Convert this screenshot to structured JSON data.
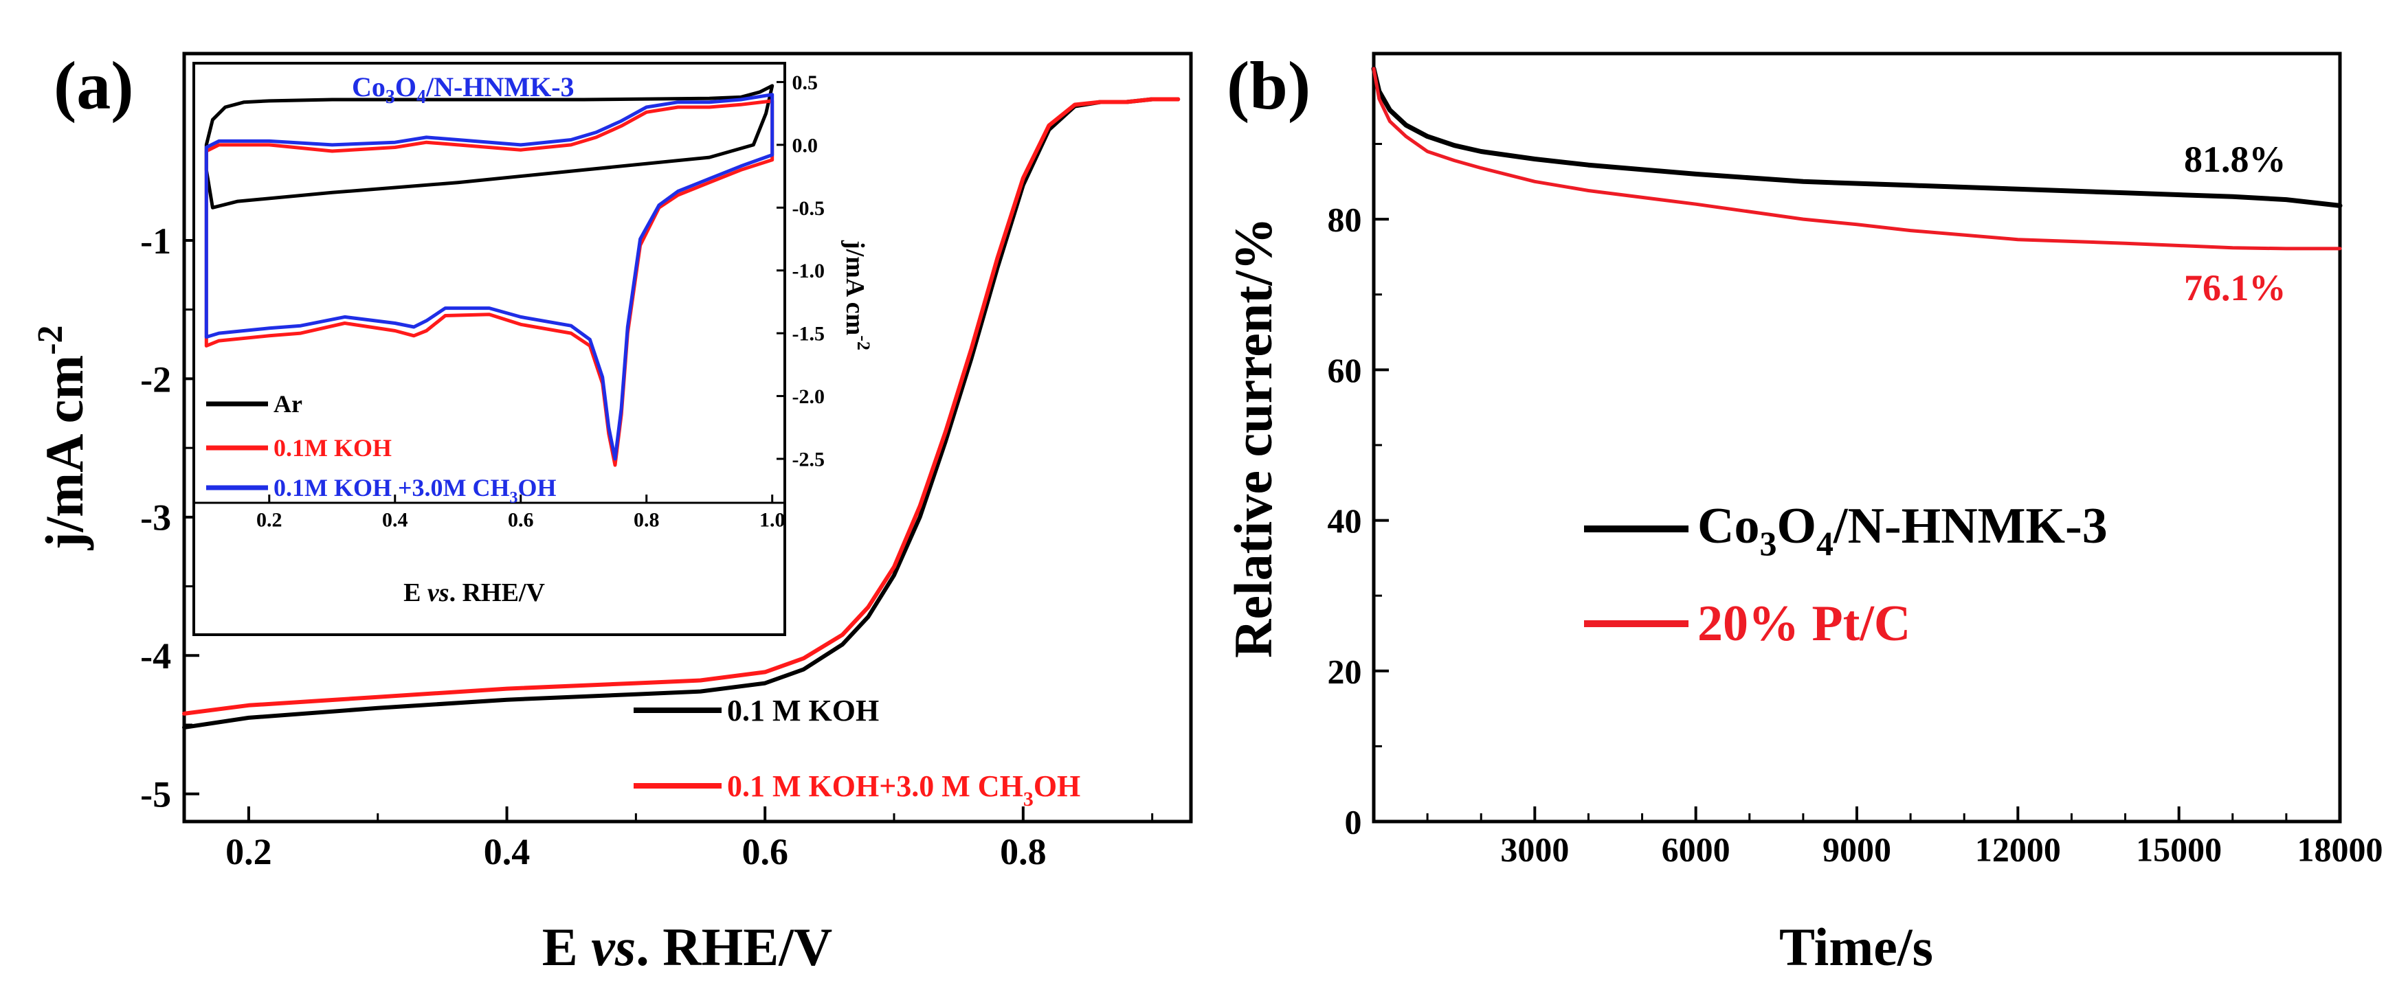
{
  "colors": {
    "black": "#000000",
    "red": "#ff1a1a",
    "blue": "#1f2ee6",
    "panel_b_red": "#ee1c25"
  },
  "chart_data": [
    {
      "panel": "(a)",
      "type": "line",
      "xlabel": {
        "pre": "E ",
        "italic": "vs",
        "post": ". RHE/V"
      },
      "ylabel": {
        "main": "j/mA cm",
        "sup": "-2"
      },
      "xlim": [
        0.15,
        0.93
      ],
      "ylim": [
        -5.2,
        0.35
      ],
      "xticks": [
        "0.2",
        "0.4",
        "0.6",
        "0.8"
      ],
      "xtick_values": [
        0.2,
        0.4,
        0.6,
        0.8
      ],
      "yticks": [
        "-1",
        "-2",
        "-3",
        "-4",
        "-5"
      ],
      "ytick_values": [
        -1,
        -2,
        -3,
        -4,
        -5
      ],
      "series": [
        {
          "name": "0.1 M KOH",
          "color": "#000000",
          "x": [
            0.15,
            0.2,
            0.3,
            0.4,
            0.5,
            0.55,
            0.6,
            0.63,
            0.66,
            0.68,
            0.7,
            0.72,
            0.74,
            0.76,
            0.78,
            0.8,
            0.82,
            0.84,
            0.86,
            0.88,
            0.9,
            0.92
          ],
          "y": [
            -4.52,
            -4.45,
            -4.38,
            -4.32,
            -4.28,
            -4.26,
            -4.2,
            -4.1,
            -3.92,
            -3.72,
            -3.42,
            -3.0,
            -2.45,
            -1.85,
            -1.2,
            -0.6,
            -0.2,
            -0.03,
            0.0,
            0.0,
            0.02,
            0.02
          ]
        },
        {
          "name": "0.1 M KOH+3.0 M CH3OH",
          "color": "#ff1a1a",
          "x": [
            0.15,
            0.2,
            0.3,
            0.4,
            0.5,
            0.55,
            0.6,
            0.63,
            0.66,
            0.68,
            0.7,
            0.72,
            0.74,
            0.76,
            0.78,
            0.8,
            0.82,
            0.84,
            0.86,
            0.88,
            0.9,
            0.92
          ],
          "y": [
            -4.42,
            -4.36,
            -4.3,
            -4.24,
            -4.2,
            -4.18,
            -4.12,
            -4.02,
            -3.85,
            -3.65,
            -3.36,
            -2.92,
            -2.38,
            -1.78,
            -1.13,
            -0.55,
            -0.17,
            -0.02,
            0.0,
            0.0,
            0.02,
            0.02
          ]
        }
      ],
      "legend": [
        {
          "text": "0.1 M KOH",
          "color": "#000000"
        },
        {
          "main": "0.1 M KOH+3.0 M CH",
          "sub": "3",
          "tail": "OH",
          "color": "#ff1a1a"
        }
      ],
      "inset": {
        "type": "line",
        "title": {
          "a": "Co",
          "s1": "3",
          "b": "O",
          "s2": "4",
          "c": "/N-HNMK-3"
        },
        "xlabel": {
          "pre": "E ",
          "italic": "vs",
          "post": ". RHE/V"
        },
        "ylabel": {
          "main": "j/mA cm",
          "sup": "-2"
        },
        "xlim": [
          0.08,
          1.02
        ],
        "ylim": [
          -2.85,
          0.65
        ],
        "xticks": [
          "0.2",
          "0.4",
          "0.6",
          "0.8",
          "1.0"
        ],
        "xtick_values": [
          0.2,
          0.4,
          0.6,
          0.8,
          1.0
        ],
        "yticks": [
          "0.5",
          "0.0",
          "-0.5",
          "-1.0",
          "-1.5",
          "-2.0",
          "-2.5"
        ],
        "ytick_values": [
          0.5,
          0.0,
          -0.5,
          -1.0,
          -1.5,
          -2.0,
          -2.5
        ],
        "series": [
          {
            "name": "Ar",
            "color": "#000000",
            "x": [
              0.1,
              0.1,
              0.11,
              0.13,
              0.16,
              0.2,
              0.3,
              0.5,
              0.7,
              0.9,
              0.95,
              0.98,
              1.0,
              0.99,
              0.97,
              0.9,
              0.7,
              0.5,
              0.3,
              0.15,
              0.11,
              0.1
            ],
            "y": [
              -0.2,
              0.0,
              0.2,
              0.3,
              0.34,
              0.35,
              0.36,
              0.36,
              0.36,
              0.37,
              0.38,
              0.42,
              0.47,
              0.25,
              0.0,
              -0.1,
              -0.2,
              -0.3,
              -0.38,
              -0.45,
              -0.5,
              -0.2
            ]
          },
          {
            "name": "0.1M KOH",
            "color": "#ff1a1a",
            "x": [
              0.1,
              0.12,
              0.2,
              0.3,
              0.4,
              0.45,
              0.5,
              0.6,
              0.68,
              0.72,
              0.76,
              0.8,
              0.85,
              0.9,
              0.95,
              1.0,
              1.0,
              0.95,
              0.9,
              0.85,
              0.82,
              0.79,
              0.77,
              0.76,
              0.75,
              0.74,
              0.73,
              0.71,
              0.68,
              0.6,
              0.55,
              0.48,
              0.45,
              0.43,
              0.4,
              0.32,
              0.25,
              0.2,
              0.12,
              0.1,
              0.1
            ],
            "y": [
              -0.05,
              0.0,
              0.0,
              -0.05,
              -0.02,
              0.02,
              0.0,
              -0.04,
              0.0,
              0.06,
              0.15,
              0.26,
              0.3,
              0.3,
              0.32,
              0.35,
              -0.12,
              -0.2,
              -0.3,
              -0.4,
              -0.5,
              -0.8,
              -1.5,
              -2.15,
              -2.55,
              -2.3,
              -1.9,
              -1.6,
              -1.5,
              -1.43,
              -1.35,
              -1.36,
              -1.48,
              -1.52,
              -1.48,
              -1.42,
              -1.5,
              -1.52,
              -1.56,
              -1.6,
              -0.05
            ]
          },
          {
            "name": "0.1M KOH +3.0M CH3OH",
            "color": "#1f2ee6",
            "x": [
              0.1,
              0.12,
              0.2,
              0.3,
              0.4,
              0.45,
              0.5,
              0.6,
              0.68,
              0.72,
              0.76,
              0.8,
              0.85,
              0.9,
              0.95,
              1.0,
              1.0,
              0.95,
              0.9,
              0.85,
              0.82,
              0.79,
              0.77,
              0.76,
              0.75,
              0.74,
              0.73,
              0.71,
              0.68,
              0.6,
              0.55,
              0.48,
              0.45,
              0.43,
              0.4,
              0.32,
              0.25,
              0.2,
              0.12,
              0.1,
              0.1
            ],
            "y": [
              -0.02,
              0.03,
              0.03,
              0.0,
              0.02,
              0.06,
              0.04,
              0.0,
              0.04,
              0.1,
              0.19,
              0.3,
              0.34,
              0.34,
              0.36,
              0.4,
              -0.08,
              -0.17,
              -0.27,
              -0.37,
              -0.48,
              -0.75,
              -1.45,
              -2.1,
              -2.5,
              -2.25,
              -1.85,
              -1.55,
              -1.44,
              -1.37,
              -1.3,
              -1.3,
              -1.4,
              -1.45,
              -1.42,
              -1.37,
              -1.44,
              -1.46,
              -1.5,
              -1.53,
              -0.02
            ]
          }
        ],
        "legend": [
          {
            "text": "Ar",
            "color": "#000000"
          },
          {
            "text": "0.1M KOH",
            "color": "#ff1a1a"
          },
          {
            "main": "0.1M KOH +3.0M CH",
            "sub": "3",
            "tail": "OH",
            "color": "#1f2ee6"
          }
        ]
      }
    },
    {
      "panel": "(b)",
      "type": "line",
      "xlabel": "Time/s",
      "ylabel": "Relative current/%",
      "xlim": [
        0,
        18000
      ],
      "ylim": [
        0,
        102
      ],
      "xticks": [
        "3000",
        "6000",
        "9000",
        "12000",
        "15000",
        "18000"
      ],
      "xtick_values": [
        3000,
        6000,
        9000,
        12000,
        15000,
        18000
      ],
      "yticks": [
        "0",
        "20",
        "40",
        "60",
        "80"
      ],
      "ytick_values": [
        0,
        20,
        40,
        60,
        80
      ],
      "series": [
        {
          "name": "Co3O4/N-HNMK-3",
          "color": "#000000",
          "x": [
            0,
            100,
            300,
            600,
            1000,
            1500,
            2000,
            3000,
            4000,
            6000,
            8000,
            10000,
            12000,
            14000,
            16000,
            17000,
            18000
          ],
          "y": [
            100,
            97,
            94.5,
            92.5,
            91,
            89.8,
            89,
            88,
            87.2,
            86,
            85,
            84.5,
            84,
            83.5,
            83,
            82.6,
            81.8
          ]
        },
        {
          "name": "20% Pt/C",
          "color": "#ee1c25",
          "x": [
            0,
            100,
            300,
            600,
            1000,
            1500,
            2000,
            3000,
            4000,
            6000,
            8000,
            9000,
            10000,
            12000,
            14000,
            15000,
            16000,
            17000,
            18000
          ],
          "y": [
            100,
            96,
            93,
            91,
            89,
            87.8,
            86.8,
            85,
            83.8,
            82,
            80,
            79.3,
            78.5,
            77.3,
            76.8,
            76.5,
            76.2,
            76.1,
            76.1
          ]
        }
      ],
      "legend": [
        {
          "a": "Co",
          "s1": "3",
          "b": "O",
          "s2": "4",
          "c": "/N-HNMK-3",
          "color": "#000000"
        },
        {
          "text": "20% Pt/C",
          "color": "#ee1c25"
        }
      ],
      "annotations": [
        {
          "text": "81.8%",
          "color": "#000000"
        },
        {
          "text": "76.1%",
          "color": "#ee1c25"
        }
      ]
    }
  ]
}
